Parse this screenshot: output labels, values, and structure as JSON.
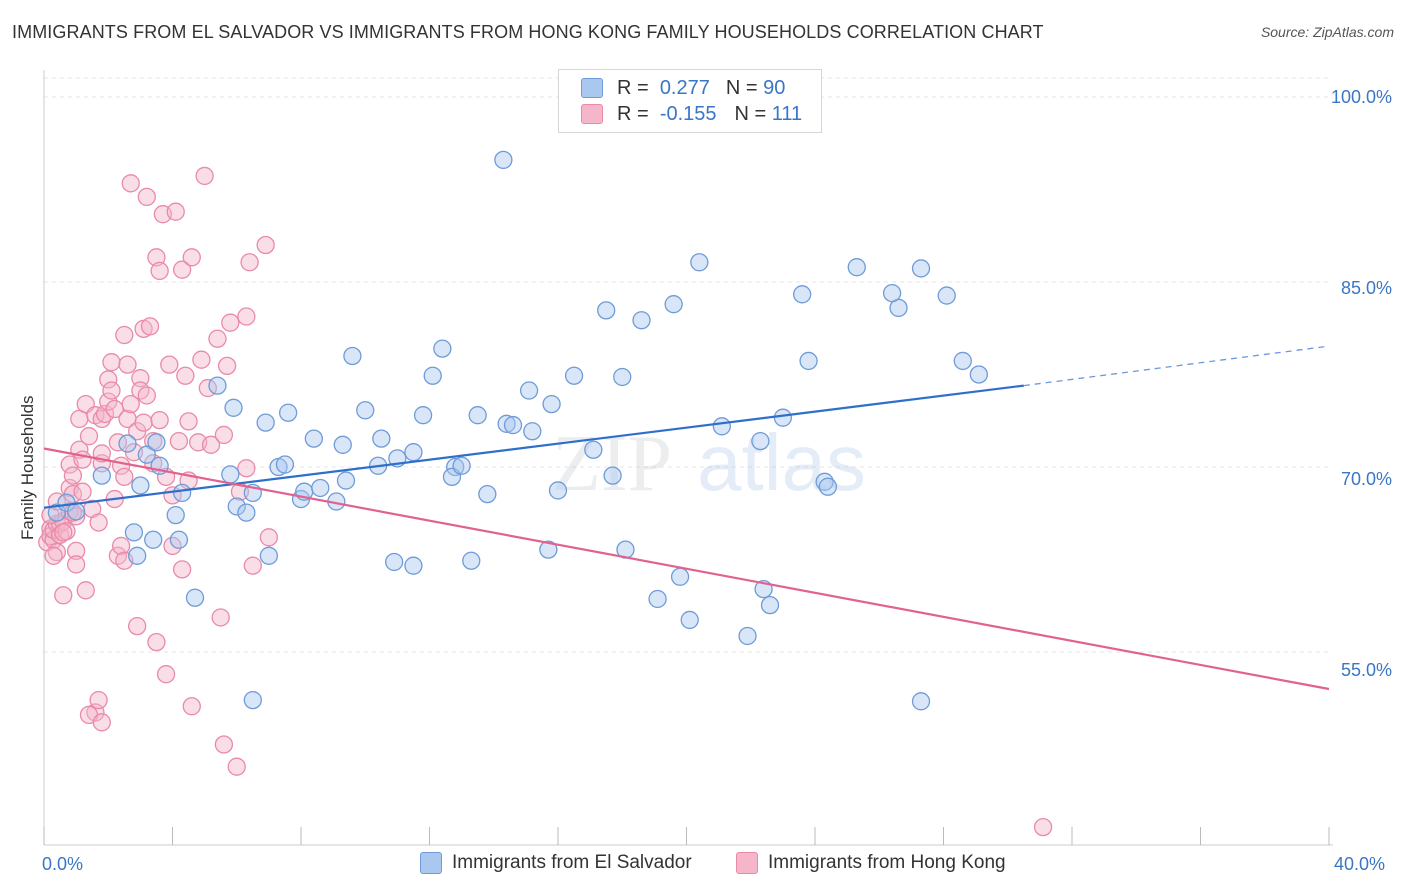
{
  "title": "IMMIGRANTS FROM EL SALVADOR VS IMMIGRANTS FROM HONG KONG FAMILY HOUSEHOLDS CORRELATION CHART",
  "source": "Source: ZipAtlas.com",
  "watermark": {
    "zip": "ZIP",
    "atlas": "atlas"
  },
  "legend": {
    "r_label": "R =",
    "n_label": "N =",
    "rows": [
      {
        "r": "0.277",
        "n": "90"
      },
      {
        "r": "-0.155",
        "n": "111"
      }
    ]
  },
  "bottom_legend": [
    "Immigrants from El Salvador",
    "Immigrants from Hong Kong"
  ],
  "colors": {
    "blue_fill": "#a9c7ef",
    "blue_stroke": "#6f9bd8",
    "blue_line": "#2e6fcc",
    "pink_fill": "#f5b6c9",
    "pink_stroke": "#e98aa8",
    "pink_line": "#e2628f",
    "tick_label": "#3a76c6",
    "grid": "#e6e6e6"
  },
  "chart_data": {
    "type": "scatter",
    "xlabel": "",
    "ylabel": "Family Households",
    "xlim": [
      0,
      40
    ],
    "ylim": [
      40,
      102
    ],
    "x_tick_labels": [
      "0.0%",
      "40.0%"
    ],
    "y_ticks": [
      100,
      85,
      70,
      55
    ],
    "y_tick_labels": [
      "100.0%",
      "85.0%",
      "70.0%",
      "55.0%"
    ],
    "grid": true,
    "legend_position": "top-center",
    "series": [
      {
        "name": "Immigrants from El Salvador",
        "r": 0.277,
        "n": 90,
        "trend": {
          "x0": 0,
          "y0": 66.7,
          "x1": 30.5,
          "y1": 76.6,
          "dash_to_x": 40,
          "dash_to_y": 79.8
        },
        "points": [
          [
            0.4,
            66.3
          ],
          [
            0.7,
            67.1
          ],
          [
            1.0,
            66.4
          ],
          [
            1.8,
            69.3
          ],
          [
            2.6,
            71.9
          ],
          [
            2.8,
            64.7
          ],
          [
            2.9,
            62.8
          ],
          [
            3.2,
            71.0
          ],
          [
            3.4,
            64.1
          ],
          [
            3.6,
            70.1
          ],
          [
            3.5,
            72.0
          ],
          [
            4.1,
            66.1
          ],
          [
            4.3,
            67.9
          ],
          [
            4.2,
            64.1
          ],
          [
            4.7,
            59.4
          ],
          [
            5.4,
            76.6
          ],
          [
            5.9,
            74.8
          ],
          [
            5.8,
            69.4
          ],
          [
            6.0,
            66.8
          ],
          [
            6.3,
            66.3
          ],
          [
            6.9,
            73.6
          ],
          [
            6.5,
            67.9
          ],
          [
            7.0,
            62.8
          ],
          [
            6.5,
            51.1
          ],
          [
            7.3,
            70.0
          ],
          [
            7.6,
            74.4
          ],
          [
            8.0,
            67.4
          ],
          [
            8.1,
            68.0
          ],
          [
            7.5,
            70.2
          ],
          [
            8.6,
            68.3
          ],
          [
            8.4,
            72.3
          ],
          [
            9.1,
            67.2
          ],
          [
            9.4,
            68.9
          ],
          [
            9.3,
            71.8
          ],
          [
            9.6,
            79.0
          ],
          [
            10.0,
            74.6
          ],
          [
            10.5,
            72.3
          ],
          [
            10.4,
            70.1
          ],
          [
            10.9,
            62.3
          ],
          [
            11.0,
            70.7
          ],
          [
            11.5,
            62.0
          ],
          [
            11.5,
            71.2
          ],
          [
            11.8,
            74.2
          ],
          [
            12.1,
            77.4
          ],
          [
            12.4,
            79.6
          ],
          [
            12.8,
            70.0
          ],
          [
            12.7,
            69.2
          ],
          [
            13.0,
            70.1
          ],
          [
            13.3,
            62.4
          ],
          [
            13.5,
            74.2
          ],
          [
            13.8,
            67.8
          ],
          [
            14.3,
            94.9
          ],
          [
            14.4,
            73.5
          ],
          [
            14.6,
            73.4
          ],
          [
            15.1,
            76.2
          ],
          [
            15.7,
            63.3
          ],
          [
            15.8,
            75.1
          ],
          [
            16.0,
            68.1
          ],
          [
            16.5,
            77.4
          ],
          [
            17.1,
            71.4
          ],
          [
            17.5,
            82.7
          ],
          [
            17.7,
            69.3
          ],
          [
            18.1,
            63.3
          ],
          [
            18.6,
            81.9
          ],
          [
            19.1,
            59.3
          ],
          [
            19.6,
            83.2
          ],
          [
            19.8,
            61.1
          ],
          [
            20.1,
            57.6
          ],
          [
            20.4,
            86.6
          ],
          [
            21.1,
            73.3
          ],
          [
            21.9,
            56.3
          ],
          [
            22.3,
            72.1
          ],
          [
            22.4,
            60.1
          ],
          [
            23.0,
            74.0
          ],
          [
            23.6,
            84.0
          ],
          [
            23.8,
            78.6
          ],
          [
            24.3,
            68.8
          ],
          [
            24.4,
            68.4
          ],
          [
            26.6,
            82.9
          ],
          [
            26.4,
            84.1
          ],
          [
            25.3,
            86.2
          ],
          [
            27.3,
            86.1
          ],
          [
            27.3,
            51.0
          ],
          [
            28.1,
            83.9
          ],
          [
            28.6,
            78.6
          ],
          [
            29.1,
            77.5
          ],
          [
            22.6,
            58.8
          ],
          [
            18.0,
            77.3
          ],
          [
            15.2,
            72.9
          ],
          [
            3.0,
            68.5
          ]
        ]
      },
      {
        "name": "Immigrants from Hong Kong",
        "r": -0.155,
        "n": 111,
        "trend": {
          "x0": 0,
          "y0": 71.5,
          "x1": 40,
          "y1": 52.0
        },
        "points": [
          [
            0.1,
            63.9
          ],
          [
            0.2,
            65.0
          ],
          [
            0.2,
            64.4
          ],
          [
            0.3,
            64.1
          ],
          [
            0.3,
            64.9
          ],
          [
            0.4,
            63.1
          ],
          [
            0.4,
            65.4
          ],
          [
            0.5,
            64.5
          ],
          [
            0.5,
            65.4
          ],
          [
            0.6,
            59.6
          ],
          [
            0.6,
            65.6
          ],
          [
            0.7,
            64.8
          ],
          [
            0.8,
            66.4
          ],
          [
            0.8,
            68.3
          ],
          [
            0.8,
            70.2
          ],
          [
            0.9,
            67.8
          ],
          [
            0.9,
            69.3
          ],
          [
            1.0,
            63.2
          ],
          [
            1.0,
            62.1
          ],
          [
            1.0,
            66.0
          ],
          [
            1.1,
            71.4
          ],
          [
            1.1,
            73.9
          ],
          [
            1.2,
            68.0
          ],
          [
            1.2,
            70.6
          ],
          [
            1.3,
            75.1
          ],
          [
            1.3,
            60.0
          ],
          [
            1.4,
            72.5
          ],
          [
            1.5,
            66.6
          ],
          [
            1.6,
            50.1
          ],
          [
            1.6,
            74.2
          ],
          [
            1.7,
            65.5
          ],
          [
            1.8,
            70.3
          ],
          [
            1.8,
            73.9
          ],
          [
            1.8,
            71.1
          ],
          [
            1.9,
            74.3
          ],
          [
            2.0,
            75.3
          ],
          [
            2.0,
            77.1
          ],
          [
            2.1,
            78.5
          ],
          [
            2.1,
            76.2
          ],
          [
            2.2,
            74.7
          ],
          [
            2.2,
            67.4
          ],
          [
            2.3,
            72.0
          ],
          [
            2.3,
            62.8
          ],
          [
            2.4,
            63.6
          ],
          [
            2.4,
            70.1
          ],
          [
            2.5,
            80.7
          ],
          [
            2.5,
            69.2
          ],
          [
            2.6,
            73.9
          ],
          [
            2.6,
            78.3
          ],
          [
            2.7,
            93.0
          ],
          [
            2.7,
            75.1
          ],
          [
            2.8,
            71.2
          ],
          [
            2.9,
            72.9
          ],
          [
            2.9,
            57.1
          ],
          [
            2.5,
            62.4
          ],
          [
            3.0,
            77.2
          ],
          [
            3.0,
            76.2
          ],
          [
            3.1,
            81.2
          ],
          [
            3.1,
            73.6
          ],
          [
            3.2,
            91.9
          ],
          [
            3.2,
            75.8
          ],
          [
            3.3,
            81.4
          ],
          [
            3.4,
            72.1
          ],
          [
            3.4,
            70.3
          ],
          [
            3.5,
            87.0
          ],
          [
            3.5,
            55.8
          ],
          [
            3.6,
            85.9
          ],
          [
            3.6,
            73.8
          ],
          [
            3.7,
            90.5
          ],
          [
            3.8,
            69.2
          ],
          [
            3.8,
            53.2
          ],
          [
            3.9,
            78.3
          ],
          [
            4.0,
            67.7
          ],
          [
            4.0,
            63.6
          ],
          [
            4.1,
            90.7
          ],
          [
            4.2,
            72.1
          ],
          [
            4.3,
            86.0
          ],
          [
            4.3,
            61.7
          ],
          [
            4.4,
            77.4
          ],
          [
            4.5,
            73.7
          ],
          [
            4.5,
            68.9
          ],
          [
            4.6,
            87.0
          ],
          [
            4.6,
            50.6
          ],
          [
            4.8,
            72.0
          ],
          [
            4.9,
            78.7
          ],
          [
            5.0,
            93.6
          ],
          [
            5.1,
            76.4
          ],
          [
            5.2,
            71.8
          ],
          [
            5.4,
            80.4
          ],
          [
            5.5,
            57.8
          ],
          [
            5.6,
            47.5
          ],
          [
            5.6,
            72.6
          ],
          [
            5.7,
            78.2
          ],
          [
            5.8,
            81.7
          ],
          [
            6.0,
            45.7
          ],
          [
            6.1,
            68.0
          ],
          [
            6.3,
            82.2
          ],
          [
            6.5,
            62.0
          ],
          [
            6.3,
            69.9
          ],
          [
            6.4,
            86.6
          ],
          [
            7.0,
            64.3
          ],
          [
            6.9,
            88.0
          ],
          [
            1.4,
            49.9
          ],
          [
            1.7,
            51.1
          ],
          [
            1.8,
            49.3
          ],
          [
            0.3,
            62.8
          ],
          [
            0.2,
            66.1
          ],
          [
            0.4,
            67.2
          ],
          [
            0.9,
            66.3
          ],
          [
            0.6,
            64.7
          ],
          [
            31.1,
            40.8
          ]
        ]
      }
    ]
  }
}
